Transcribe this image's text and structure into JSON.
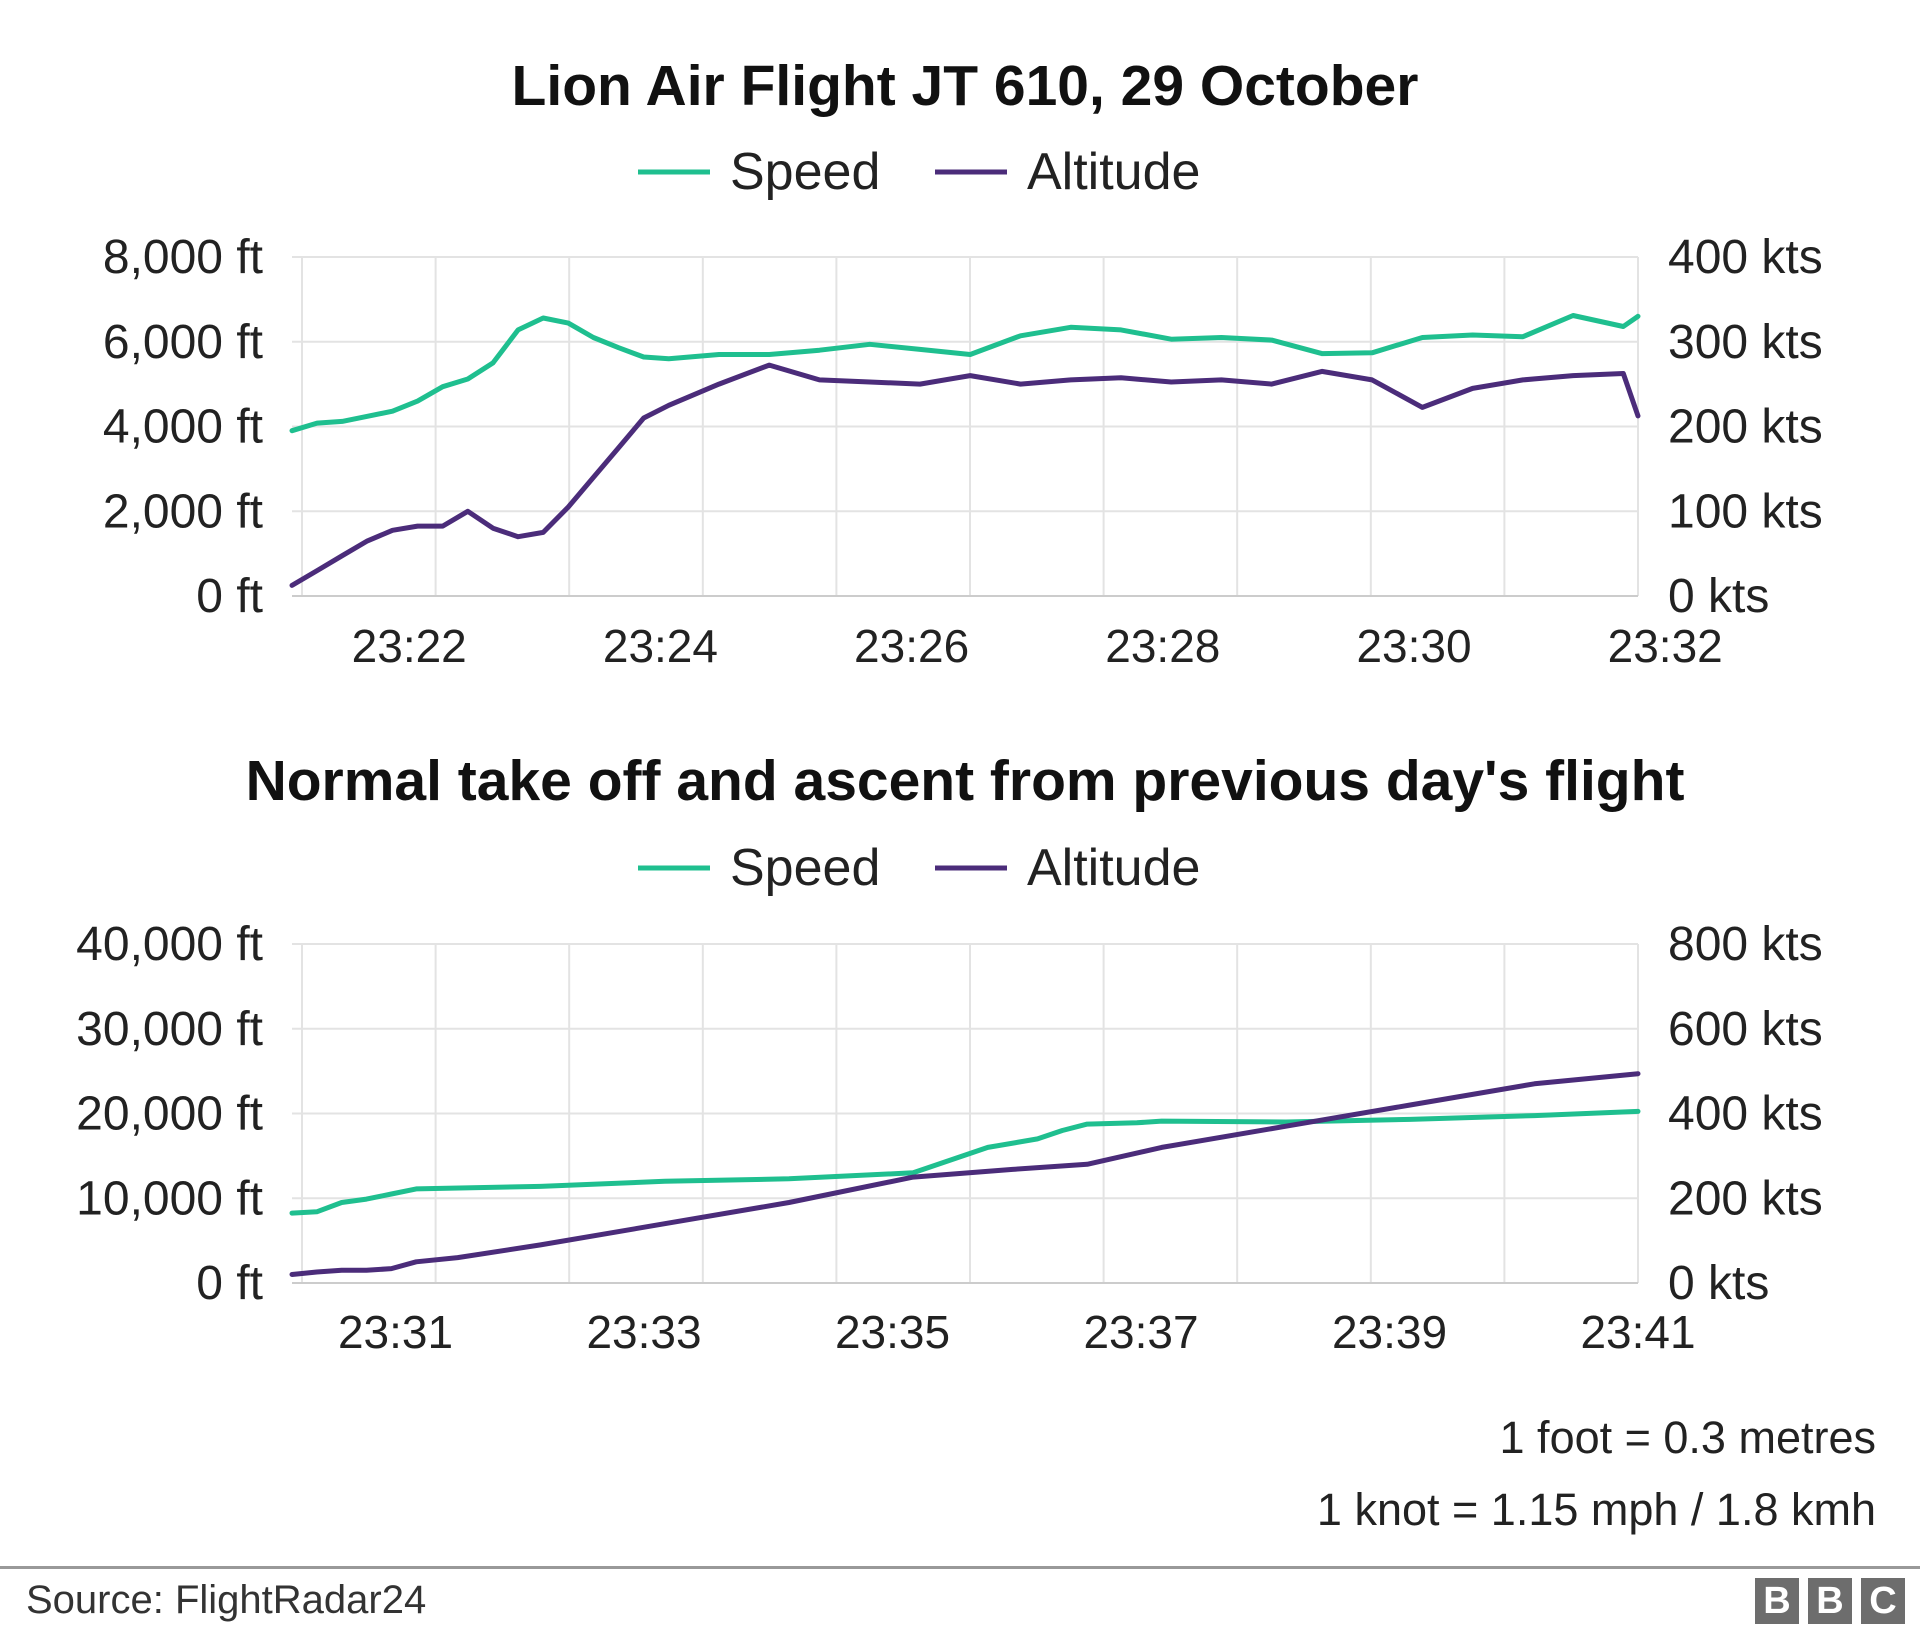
{
  "colors": {
    "speed": "#1fbf8f",
    "altitude": "#4b2c7a",
    "grid": "#e3e3e3",
    "axis": "#cccccc"
  },
  "chart_data": [
    {
      "type": "line",
      "title": "Lion Air Flight JT 610, 29 October",
      "legend_position": "top-center",
      "grid": true,
      "x_range": [
        "23:21:04",
        "23:31:47"
      ],
      "x_ticks": [
        "23:22",
        "23:24",
        "23:26",
        "23:28",
        "23:30",
        "23:32"
      ],
      "y_left": {
        "unit": "ft",
        "range": [
          0,
          8000
        ],
        "ticks": [
          "8,000 ft",
          "6,000 ft",
          "4,000 ft",
          "2,000 ft",
          "0 ft"
        ]
      },
      "y_right": {
        "unit": "kts",
        "range": [
          0,
          400
        ],
        "ticks": [
          "400 kts",
          "300 kts",
          "200 kts",
          "100 kts",
          "0 kts"
        ]
      },
      "series": [
        {
          "name": "Speed",
          "axis": "right",
          "x": [
            "23:21:04",
            "23:21:16",
            "23:21:28",
            "23:21:40",
            "23:21:52",
            "23:22:04",
            "23:22:16",
            "23:22:28",
            "23:22:40",
            "23:22:52",
            "23:23:04",
            "23:23:16",
            "23:23:28",
            "23:23:40",
            "23:23:52",
            "23:24:04",
            "23:24:28",
            "23:24:52",
            "23:25:16",
            "23:25:40",
            "23:26:04",
            "23:26:28",
            "23:26:52",
            "23:27:16",
            "23:27:40",
            "23:28:04",
            "23:28:28",
            "23:28:52",
            "23:29:16",
            "23:29:40",
            "23:30:04",
            "23:30:28",
            "23:30:52",
            "23:31:16",
            "23:31:40",
            "23:31:47"
          ],
          "values": [
            195,
            204,
            206,
            212,
            218,
            230,
            247,
            256,
            275,
            314,
            328,
            322,
            305,
            293,
            282,
            280,
            285,
            285,
            290,
            297,
            291,
            285,
            307,
            317,
            314,
            303,
            305,
            302,
            286,
            287,
            305,
            308,
            306,
            331,
            318,
            330
          ]
        },
        {
          "name": "Altitude",
          "axis": "left",
          "x": [
            "23:21:04",
            "23:21:16",
            "23:21:28",
            "23:21:40",
            "23:21:52",
            "23:22:04",
            "23:22:16",
            "23:22:28",
            "23:22:40",
            "23:22:52",
            "23:23:04",
            "23:23:16",
            "23:23:28",
            "23:23:40",
            "23:23:52",
            "23:24:04",
            "23:24:28",
            "23:24:52",
            "23:25:16",
            "23:25:40",
            "23:26:04",
            "23:26:28",
            "23:26:52",
            "23:27:16",
            "23:27:40",
            "23:28:04",
            "23:28:28",
            "23:28:52",
            "23:29:16",
            "23:29:40",
            "23:30:04",
            "23:30:28",
            "23:30:52",
            "23:31:16",
            "23:31:40",
            "23:31:47"
          ],
          "values": [
            250,
            600,
            950,
            1300,
            1550,
            1650,
            1650,
            2000,
            1600,
            1400,
            1500,
            2100,
            2800,
            3500,
            4200,
            4500,
            5000,
            5450,
            5100,
            5050,
            5000,
            5200,
            5000,
            5100,
            5150,
            5050,
            5100,
            5000,
            5300,
            5100,
            4450,
            4900,
            5100,
            5200,
            5250,
            4250
          ]
        }
      ]
    },
    {
      "type": "line",
      "title": "Normal take off and ascent from previous day's flight",
      "legend_position": "top-center",
      "grid": true,
      "x_range": [
        "23:30:10",
        "23:41:00"
      ],
      "x_ticks": [
        "23:31",
        "23:33",
        "23:35",
        "23:37",
        "23:39",
        "23:41"
      ],
      "y_left": {
        "unit": "ft",
        "range": [
          0,
          40000
        ],
        "ticks": [
          "40,000 ft",
          "30,000 ft",
          "20,000 ft",
          "10,000 ft",
          "0 ft"
        ]
      },
      "y_right": {
        "unit": "kts",
        "range": [
          0,
          800
        ],
        "ticks": [
          "800 kts",
          "600 kts",
          "400 kts",
          "200 kts",
          "0 kts"
        ]
      },
      "series": [
        {
          "name": "Speed",
          "axis": "right",
          "x": [
            "23:30:10",
            "23:30:22",
            "23:30:34",
            "23:30:46",
            "23:30:58",
            "23:31:10",
            "23:32:10",
            "23:33:10",
            "23:34:10",
            "23:35:10",
            "23:35:46",
            "23:36:10",
            "23:36:22",
            "23:36:34",
            "23:36:58",
            "23:37:10",
            "23:38:10",
            "23:39:10",
            "23:40:10",
            "23:41:00"
          ],
          "values": [
            165,
            168,
            190,
            198,
            210,
            222,
            228,
            240,
            246,
            260,
            320,
            340,
            360,
            375,
            378,
            382,
            380,
            386,
            395,
            405
          ]
        },
        {
          "name": "Altitude",
          "axis": "left",
          "x": [
            "23:30:10",
            "23:30:22",
            "23:30:34",
            "23:30:46",
            "23:30:58",
            "23:31:10",
            "23:31:30",
            "23:32:10",
            "23:33:10",
            "23:34:10",
            "23:35:10",
            "23:35:58",
            "23:36:34",
            "23:37:10",
            "23:38:10",
            "23:39:10",
            "23:40:10",
            "23:41:00"
          ],
          "values": [
            1000,
            1300,
            1500,
            1500,
            1700,
            2500,
            3000,
            4500,
            7000,
            9500,
            12500,
            13400,
            14000,
            16000,
            18500,
            21000,
            23500,
            24700
          ]
        }
      ]
    }
  ],
  "legend": {
    "speed_label": "Speed",
    "altitude_label": "Altitude"
  },
  "notes": {
    "line1": "1 foot = 0.3 metres",
    "line2": "1 knot = 1.15 mph / 1.8 kmh"
  },
  "source": "Source: FlightRadar24",
  "logo": {
    "letters": [
      "B",
      "B",
      "C"
    ]
  }
}
